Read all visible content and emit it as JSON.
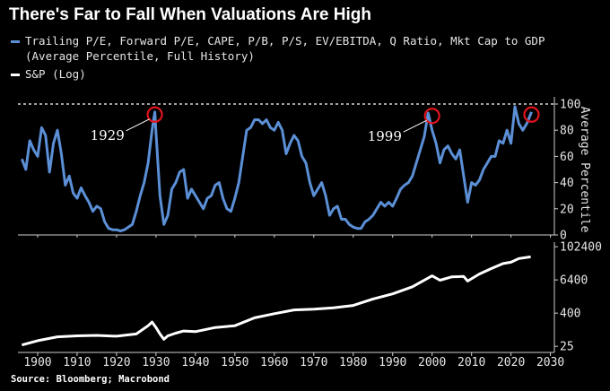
{
  "title": "There's Far to Fall When Valuations Are High",
  "source": "Source: Bloomberg; Macrobond",
  "colors": {
    "background": "#000000",
    "pe_series": "#5b8fd6",
    "sp_series": "#ffffff",
    "circle": "#e0141e"
  },
  "legend": [
    {
      "line1": "Trailing P/E, Forward P/E, CAPE, P/B, P/S, EV/EBITDA, Q Ratio, Mkt Cap to GDP",
      "line2": "(Average Percentile, Full History)",
      "color": "#5b8fd6"
    },
    {
      "line1": "S&P (Log)",
      "color": "#ffffff"
    }
  ],
  "chart_data": [
    {
      "type": "line",
      "name": "Average Percentile",
      "ylabel": "Average Percentile",
      "ylim": [
        0,
        100
      ],
      "yticks": [
        "0",
        "20",
        "40",
        "60",
        "80",
        "100"
      ],
      "xlim": [
        1895,
        2031
      ],
      "reference_line": 100,
      "annotations": [
        {
          "label": "1929",
          "x": 1929.7,
          "y": 94
        },
        {
          "label": "1999",
          "x": 2000.0,
          "y": 93
        },
        {
          "label": "",
          "x": 2025.2,
          "y": 94
        }
      ],
      "x": [
        1896,
        1897,
        1898,
        1899,
        1900,
        1901,
        1902,
        1903,
        1904,
        1905,
        1906,
        1907,
        1908,
        1909,
        1910,
        1911,
        1912,
        1913,
        1914,
        1915,
        1916,
        1917,
        1918,
        1919,
        1920,
        1921,
        1922,
        1923,
        1924,
        1925,
        1926,
        1927,
        1928,
        1929,
        1929.7,
        1930,
        1931,
        1932,
        1933,
        1934,
        1935,
        1936,
        1937,
        1938,
        1939,
        1940,
        1941,
        1942,
        1943,
        1944,
        1945,
        1946,
        1947,
        1948,
        1949,
        1950,
        1951,
        1952,
        1953,
        1954,
        1955,
        1956,
        1957,
        1958,
        1959,
        1960,
        1961,
        1962,
        1963,
        1964,
        1965,
        1966,
        1967,
        1968,
        1969,
        1970,
        1971,
        1972,
        1973,
        1974,
        1975,
        1976,
        1977,
        1978,
        1979,
        1980,
        1981,
        1982,
        1983,
        1984,
        1985,
        1986,
        1987,
        1988,
        1989,
        1990,
        1991,
        1992,
        1993,
        1994,
        1995,
        1996,
        1997,
        1998,
        1999,
        2000,
        2001,
        2002,
        2003,
        2004,
        2005,
        2006,
        2007,
        2008,
        2009,
        2010,
        2011,
        2012,
        2013,
        2014,
        2015,
        2016,
        2017,
        2018,
        2019,
        2020,
        2021,
        2022,
        2023,
        2024,
        2025.2
      ],
      "values": [
        58,
        50,
        72,
        65,
        60,
        82,
        76,
        48,
        70,
        80,
        62,
        38,
        45,
        32,
        28,
        36,
        30,
        25,
        18,
        22,
        20,
        10,
        5,
        4,
        4,
        3,
        4,
        6,
        8,
        18,
        30,
        40,
        55,
        80,
        94,
        78,
        30,
        8,
        15,
        35,
        40,
        48,
        50,
        28,
        35,
        30,
        25,
        20,
        28,
        30,
        38,
        40,
        28,
        20,
        18,
        28,
        40,
        60,
        80,
        82,
        88,
        88,
        85,
        88,
        82,
        80,
        86,
        80,
        62,
        70,
        76,
        72,
        60,
        55,
        40,
        30,
        35,
        40,
        30,
        15,
        20,
        22,
        12,
        12,
        8,
        6,
        5,
        5,
        10,
        12,
        15,
        20,
        25,
        22,
        25,
        22,
        28,
        35,
        38,
        40,
        45,
        55,
        65,
        75,
        93,
        80,
        70,
        55,
        65,
        68,
        62,
        58,
        65,
        45,
        25,
        40,
        38,
        42,
        50,
        55,
        60,
        60,
        72,
        70,
        80,
        70,
        98,
        85,
        80,
        85,
        94
      ]
    },
    {
      "type": "line",
      "name": "S&P (Log)",
      "ylabel": "",
      "yscale": "log",
      "ylim": [
        15,
        150000
      ],
      "yticks": [
        "25",
        "400",
        "6400",
        "102400"
      ],
      "xlim": [
        1895,
        2031
      ],
      "xticks": [
        "1900",
        "1910",
        "1920",
        "1930",
        "1940",
        "1950",
        "1960",
        "1970",
        "1980",
        "1990",
        "2000",
        "2010",
        "2020",
        "2030"
      ],
      "x": [
        1896,
        1900,
        1905,
        1910,
        1915,
        1920,
        1925,
        1928,
        1929,
        1930,
        1931,
        1932,
        1933,
        1935,
        1937,
        1940,
        1945,
        1950,
        1955,
        1960,
        1965,
        1970,
        1975,
        1980,
        1985,
        1990,
        1995,
        2000,
        2002,
        2005,
        2008,
        2009,
        2012,
        2015,
        2018,
        2020,
        2022,
        2025
      ],
      "values": [
        28,
        40,
        55,
        60,
        62,
        58,
        70,
        140,
        190,
        120,
        70,
        45,
        60,
        75,
        90,
        85,
        120,
        140,
        270,
        380,
        520,
        560,
        620,
        760,
        1300,
        2000,
        3600,
        9000,
        6200,
        8300,
        8500,
        5800,
        10500,
        16500,
        25000,
        28000,
        38000,
        44000
      ]
    }
  ]
}
